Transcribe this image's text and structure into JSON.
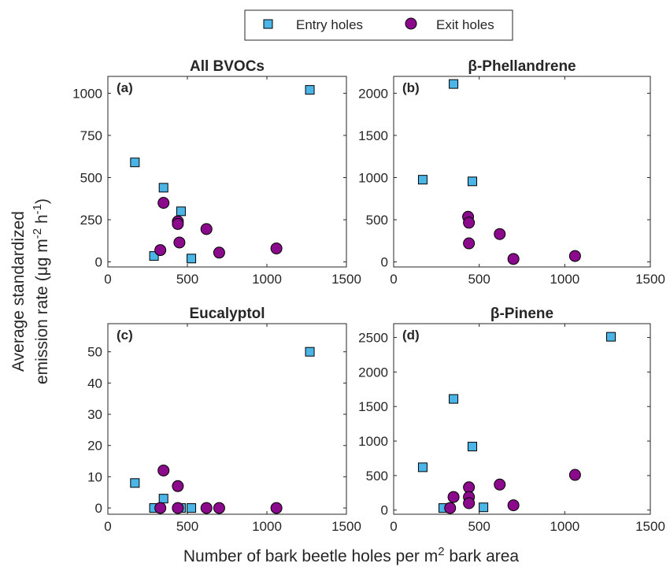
{
  "figure": {
    "xlabel_main": "Number of bark beetle holes per m",
    "xlabel_sup": "2",
    "xlabel_tail": " bark area",
    "ylabel_line1": "Average standardized",
    "ylabel_line2_main": "emission rate (μg m",
    "ylabel_sup1": "-2",
    "ylabel_mid": " h",
    "ylabel_sup2": "-1",
    "ylabel_tail": ")"
  },
  "legend": {
    "entries": [
      {
        "label": "Entry holes",
        "marker": "square",
        "color": "#4ab5e6"
      },
      {
        "label": "Exit holes",
        "marker": "circle",
        "color": "#8b0a8b"
      }
    ]
  },
  "colors": {
    "entry": "#4ab5e6",
    "exit": "#8b0a8b",
    "axis": "#262626"
  },
  "chart_data": [
    {
      "type": "scatter",
      "panel_label": "(a)",
      "title": "All BVOCs",
      "xlim": [
        0,
        1500
      ],
      "ylim": [
        -30,
        1100
      ],
      "xticks": [
        0,
        500,
        1000,
        1500
      ],
      "yticks": [
        0,
        250,
        500,
        750,
        1000
      ],
      "series": [
        {
          "name": "Entry holes",
          "x": [
            170,
            290,
            350,
            460,
            525,
            1270
          ],
          "y": [
            590,
            35,
            440,
            300,
            20,
            1020
          ]
        },
        {
          "name": "Exit holes",
          "x": [
            330,
            350,
            440,
            440,
            450,
            620,
            700,
            1060
          ],
          "y": [
            70,
            350,
            240,
            225,
            115,
            195,
            55,
            80
          ]
        }
      ]
    },
    {
      "type": "scatter",
      "panel_label": "(b)",
      "title": "β-Phellandrene",
      "xlim": [
        0,
        1500
      ],
      "ylim": [
        -60,
        2200
      ],
      "xticks": [
        0,
        500,
        1000,
        1500
      ],
      "yticks": [
        0,
        500,
        1000,
        1500,
        2000
      ],
      "series": [
        {
          "name": "Entry holes",
          "x": [
            170,
            350,
            460
          ],
          "y": [
            975,
            2110,
            955
          ]
        },
        {
          "name": "Exit holes",
          "x": [
            435,
            440,
            440,
            620,
            700,
            1060
          ],
          "y": [
            535,
            465,
            220,
            330,
            35,
            70
          ]
        }
      ]
    },
    {
      "type": "scatter",
      "panel_label": "(c)",
      "title": "Eucalyptol",
      "xlim": [
        0,
        1500
      ],
      "ylim": [
        -2,
        59
      ],
      "xticks": [
        0,
        500,
        1000,
        1500
      ],
      "yticks": [
        0,
        10,
        20,
        30,
        40,
        50
      ],
      "series": [
        {
          "name": "Entry holes",
          "x": [
            170,
            290,
            350,
            460,
            525,
            1270
          ],
          "y": [
            8,
            0,
            3,
            0,
            0,
            50
          ]
        },
        {
          "name": "Exit holes",
          "x": [
            330,
            350,
            440,
            440,
            620,
            700,
            1060
          ],
          "y": [
            0,
            12,
            7,
            0,
            0,
            0,
            0
          ]
        }
      ]
    },
    {
      "type": "scatter",
      "panel_label": "(d)",
      "title": "β-Pinene",
      "xlim": [
        0,
        1500
      ],
      "ylim": [
        -60,
        2700
      ],
      "xticks": [
        0,
        500,
        1000,
        1500
      ],
      "yticks": [
        0,
        500,
        1000,
        1500,
        2000,
        2500
      ],
      "series": [
        {
          "name": "Entry holes",
          "x": [
            170,
            290,
            350,
            460,
            525,
            1270
          ],
          "y": [
            620,
            30,
            1610,
            920,
            40,
            2510
          ]
        },
        {
          "name": "Exit holes",
          "x": [
            330,
            350,
            440,
            440,
            440,
            620,
            700,
            1060
          ],
          "y": [
            30,
            190,
            330,
            190,
            100,
            370,
            70,
            510
          ]
        }
      ]
    }
  ]
}
